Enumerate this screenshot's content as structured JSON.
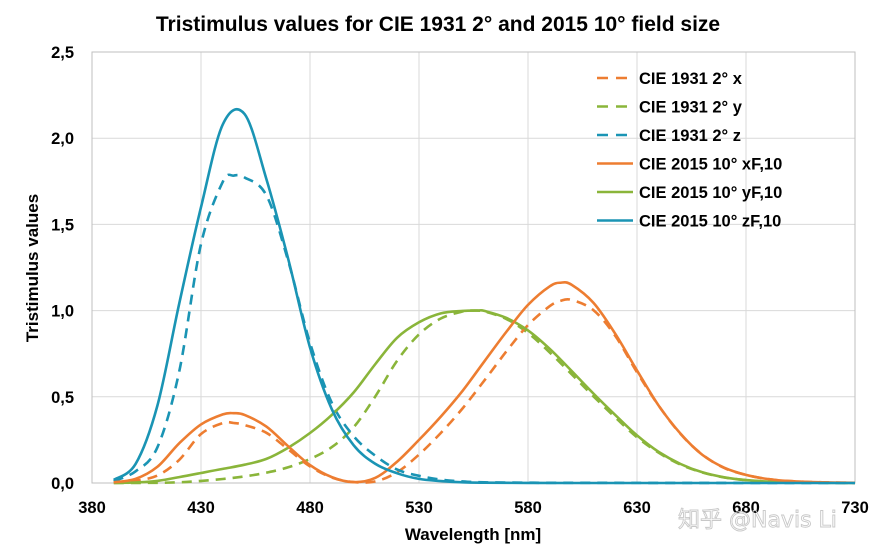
{
  "watermark": "知乎 @Navis Li",
  "chart_data": {
    "type": "line",
    "title": "Tristimulus values for CIE 1931 2° and 2015 10° field size",
    "xlabel": "Wavelength [nm]",
    "ylabel": "Tristimulus values",
    "xlim": [
      380,
      730
    ],
    "ylim": [
      0,
      2.5
    ],
    "xticks": [
      380,
      430,
      480,
      530,
      580,
      630,
      680,
      730
    ],
    "xtick_labels": [
      "380",
      "430",
      "480",
      "530",
      "580",
      "630",
      "680",
      "730"
    ],
    "yticks": [
      0,
      0.5,
      1.0,
      1.5,
      2.0,
      2.5
    ],
    "ytick_labels": [
      "0,0",
      "0,5",
      "1,0",
      "1,5",
      "2,0",
      "2,5"
    ],
    "grid": true,
    "legend_position": "top-right",
    "series": [
      {
        "name": "CIE 1931 2° x",
        "style": "dashed",
        "color": "#ed7d31",
        "x": [
          390,
          400,
          410,
          420,
          430,
          440,
          445,
          450,
          460,
          470,
          480,
          490,
          500,
          510,
          520,
          530,
          540,
          550,
          560,
          570,
          580,
          590,
          595,
          600,
          610,
          620,
          630,
          640,
          650,
          660,
          670,
          680,
          690,
          700,
          710,
          720,
          730
        ],
        "y": [
          0.004,
          0.014,
          0.043,
          0.134,
          0.284,
          0.348,
          0.348,
          0.336,
          0.291,
          0.195,
          0.096,
          0.032,
          0.005,
          0.009,
          0.063,
          0.165,
          0.29,
          0.433,
          0.595,
          0.762,
          0.916,
          1.026,
          1.057,
          1.062,
          1.003,
          0.854,
          0.642,
          0.448,
          0.284,
          0.165,
          0.087,
          0.047,
          0.023,
          0.011,
          0.006,
          0.003,
          0.001
        ]
      },
      {
        "name": "CIE 1931 2° y",
        "style": "dashed",
        "color": "#8ab53a",
        "x": [
          390,
          400,
          410,
          420,
          430,
          440,
          450,
          460,
          470,
          480,
          490,
          500,
          510,
          520,
          530,
          540,
          550,
          555,
          560,
          570,
          580,
          590,
          600,
          610,
          620,
          630,
          640,
          650,
          660,
          670,
          680,
          690,
          700,
          710,
          720,
          730
        ],
        "y": [
          0.0001,
          0.0004,
          0.0012,
          0.004,
          0.012,
          0.023,
          0.038,
          0.06,
          0.091,
          0.139,
          0.208,
          0.323,
          0.503,
          0.71,
          0.862,
          0.954,
          0.995,
          1.0,
          0.995,
          0.952,
          0.87,
          0.757,
          0.631,
          0.503,
          0.381,
          0.265,
          0.175,
          0.107,
          0.061,
          0.032,
          0.017,
          0.008,
          0.004,
          0.002,
          0.001,
          0.0005
        ]
      },
      {
        "name": "CIE 1931 2° z",
        "style": "dashed",
        "color": "#1a94b4",
        "x": [
          390,
          400,
          410,
          420,
          430,
          440,
          445,
          450,
          460,
          470,
          480,
          490,
          500,
          510,
          520,
          530,
          540,
          550,
          560,
          580,
          600,
          730
        ],
        "y": [
          0.01,
          0.068,
          0.207,
          0.646,
          1.386,
          1.747,
          1.783,
          1.772,
          1.669,
          1.288,
          0.813,
          0.465,
          0.272,
          0.158,
          0.078,
          0.042,
          0.02,
          0.009,
          0.004,
          0.002,
          0.001,
          0.0
        ]
      },
      {
        "name": "CIE 2015 10° xF,10",
        "style": "solid",
        "color": "#ed7d31",
        "x": [
          390,
          400,
          410,
          420,
          430,
          440,
          445,
          450,
          460,
          470,
          480,
          490,
          500,
          510,
          520,
          530,
          540,
          550,
          560,
          570,
          580,
          590,
          595,
          600,
          610,
          620,
          630,
          640,
          650,
          660,
          670,
          680,
          690,
          700,
          710,
          720,
          730
        ],
        "y": [
          0.004,
          0.024,
          0.094,
          0.23,
          0.34,
          0.398,
          0.405,
          0.395,
          0.327,
          0.213,
          0.104,
          0.034,
          0.005,
          0.03,
          0.124,
          0.25,
          0.385,
          0.535,
          0.706,
          0.876,
          1.033,
          1.141,
          1.162,
          1.15,
          1.046,
          0.866,
          0.653,
          0.448,
          0.286,
          0.163,
          0.089,
          0.047,
          0.023,
          0.011,
          0.006,
          0.003,
          0.001
        ]
      },
      {
        "name": "CIE 2015 10° yF,10",
        "style": "solid",
        "color": "#8ab53a",
        "x": [
          390,
          400,
          410,
          420,
          430,
          440,
          450,
          460,
          470,
          480,
          490,
          500,
          510,
          520,
          530,
          540,
          550,
          557,
          560,
          570,
          580,
          590,
          600,
          610,
          620,
          630,
          640,
          650,
          660,
          670,
          680,
          690,
          700,
          710,
          720,
          730
        ],
        "y": [
          0.0004,
          0.003,
          0.012,
          0.034,
          0.058,
          0.082,
          0.106,
          0.14,
          0.205,
          0.29,
          0.395,
          0.525,
          0.69,
          0.843,
          0.932,
          0.984,
          0.998,
          1.0,
          0.998,
          0.958,
          0.885,
          0.778,
          0.65,
          0.519,
          0.395,
          0.276,
          0.18,
          0.11,
          0.062,
          0.033,
          0.017,
          0.008,
          0.004,
          0.002,
          0.001,
          0.0005
        ]
      },
      {
        "name": "CIE 2015 10° zF,10",
        "style": "solid",
        "color": "#1a94b4",
        "x": [
          390,
          400,
          410,
          420,
          430,
          440,
          450,
          460,
          470,
          480,
          490,
          500,
          510,
          520,
          530,
          540,
          550,
          560,
          580,
          600,
          730
        ],
        "y": [
          0.018,
          0.111,
          0.449,
          1.04,
          1.6,
          2.08,
          2.14,
          1.763,
          1.3,
          0.786,
          0.428,
          0.219,
          0.111,
          0.056,
          0.024,
          0.011,
          0.004,
          0.002,
          0.0005,
          0.0001,
          0.0
        ]
      }
    ]
  }
}
